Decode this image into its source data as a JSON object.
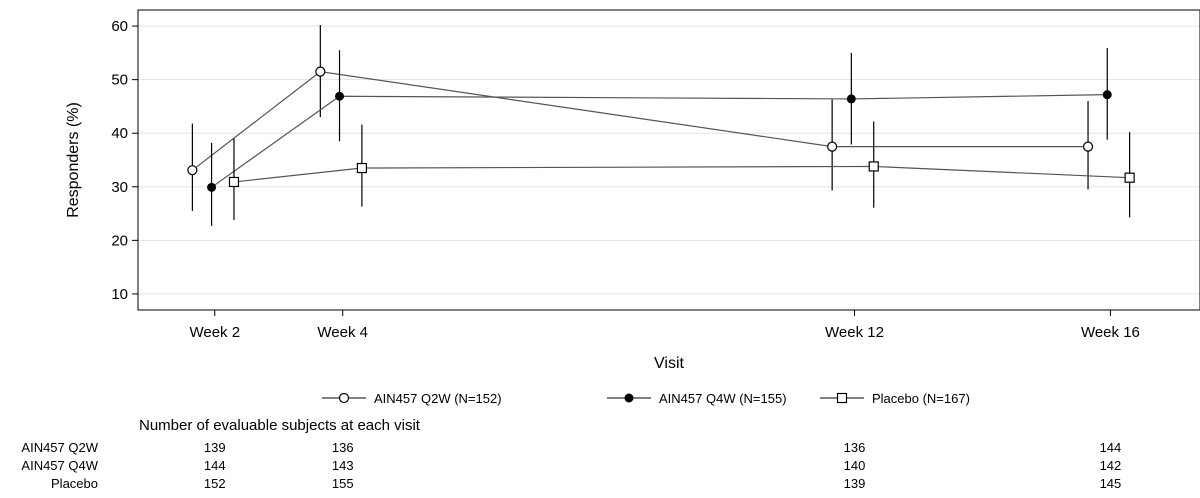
{
  "chart_data": {
    "type": "line",
    "xlabel": "Visit",
    "ylabel": "Responders (%)",
    "ylim": [
      7,
      63
    ],
    "yticks": [
      10,
      20,
      30,
      40,
      50,
      60
    ],
    "categories": [
      "Week 2",
      "Week 4",
      "Week 12",
      "Week 16"
    ],
    "x_weeks": [
      2,
      4,
      12,
      16
    ],
    "grid": true,
    "legend_position": "bottom",
    "series": [
      {
        "name": "AIN457 Q2W (N=152)",
        "marker": "open-circle",
        "values": [
          33.1,
          51.5,
          37.5,
          37.5
        ],
        "ci_low": [
          25.5,
          43.0,
          29.3,
          29.5
        ],
        "ci_high": [
          41.8,
          60.2,
          46.3,
          46.0
        ]
      },
      {
        "name": "AIN457 Q4W (N=155)",
        "marker": "filled-circle",
        "values": [
          29.9,
          46.9,
          46.4,
          47.2
        ],
        "ci_low": [
          22.7,
          38.5,
          37.9,
          38.8
        ],
        "ci_high": [
          38.2,
          55.5,
          55.0,
          55.9
        ]
      },
      {
        "name": "Placebo (N=167)",
        "marker": "open-square",
        "values": [
          30.9,
          33.5,
          33.8,
          31.7
        ],
        "ci_low": [
          23.8,
          26.3,
          26.1,
          24.3
        ],
        "ci_high": [
          39.0,
          41.6,
          42.2,
          40.2
        ]
      }
    ],
    "table": {
      "title": "Number of evaluable subjects at each visit",
      "rows": [
        {
          "label": "AIN457 Q2W",
          "values": [
            "139",
            "136",
            "136",
            "144"
          ]
        },
        {
          "label": "AIN457 Q4W",
          "values": [
            "144",
            "143",
            "140",
            "142"
          ]
        },
        {
          "label": "Placebo",
          "values": [
            "152",
            "155",
            "139",
            "145"
          ]
        }
      ]
    }
  },
  "colors": {
    "line": "#000000",
    "series_line": "#555555",
    "grid": "#e3e3e3"
  }
}
